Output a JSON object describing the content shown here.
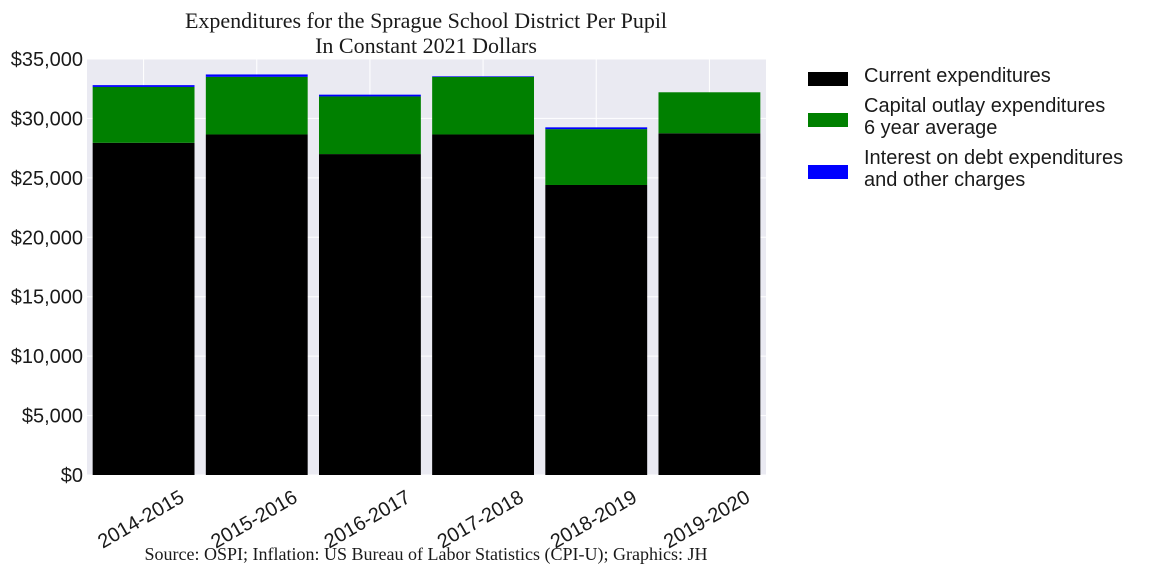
{
  "chart_data": {
    "type": "bar",
    "stacked": true,
    "title": "Expenditures for the Sprague School District Per Pupil",
    "subtitle": "In Constant 2021 Dollars",
    "source": "Source: OSPI; Inflation: US Bureau of Labor Statistics (CPI-U); Graphics: JH",
    "categories": [
      "2014-2015",
      "2015-2016",
      "2016-2017",
      "2017-2018",
      "2018-2019",
      "2019-2020"
    ],
    "series": [
      {
        "legend_lines": [
          "Current expenditures"
        ],
        "color": "#000000",
        "values": [
          27950,
          28650,
          27000,
          28650,
          24400,
          28750
        ]
      },
      {
        "legend_lines": [
          "Capital outlay expenditures",
          "6 year average"
        ],
        "color": "#008000",
        "values": [
          4700,
          4850,
          4850,
          4850,
          4700,
          3450
        ]
      },
      {
        "legend_lines": [
          "Interest on debt expenditures",
          "and other charges"
        ],
        "color": "#0000ff",
        "values": [
          150,
          200,
          150,
          50,
          150,
          0
        ]
      }
    ],
    "ylim": [
      0,
      35000
    ],
    "yticks": [
      0,
      5000,
      10000,
      15000,
      20000,
      25000,
      30000,
      35000
    ],
    "ytick_labels": [
      "$0",
      "$5,000",
      "$10,000",
      "$15,000",
      "$20,000",
      "$25,000",
      "$30,000",
      "$35,000"
    ],
    "grid": true,
    "plot_background": "#eaeaf2",
    "legend_position": "outside-right"
  }
}
